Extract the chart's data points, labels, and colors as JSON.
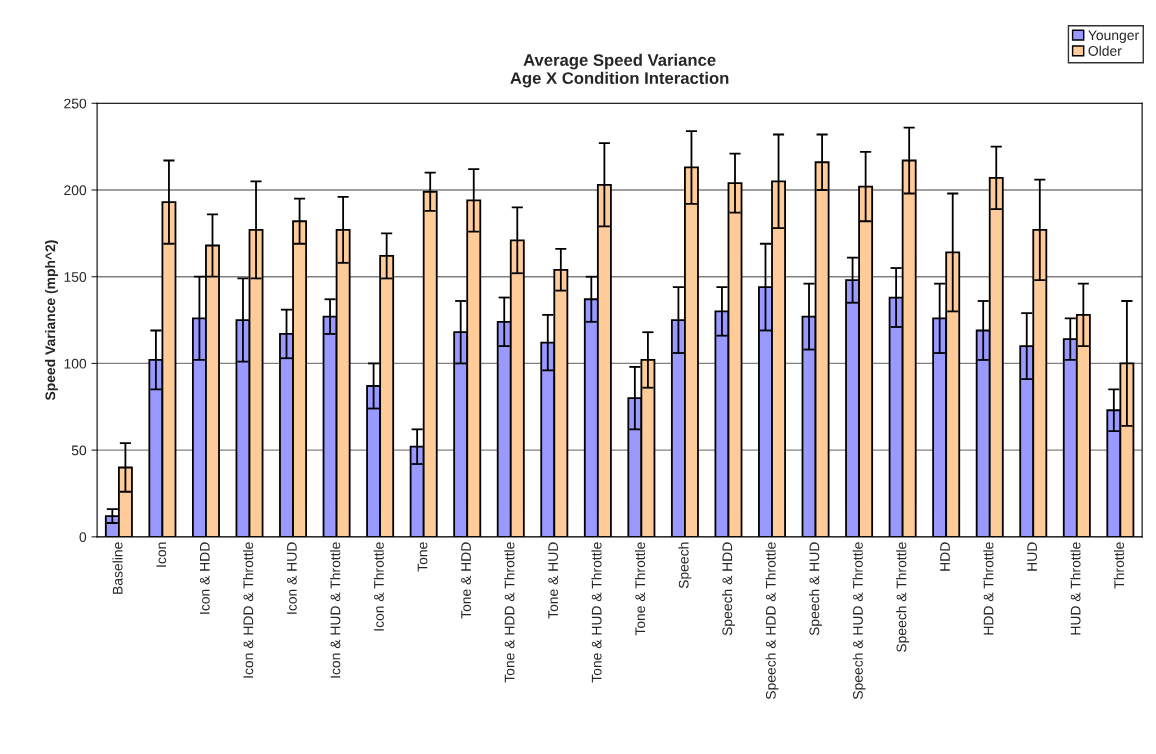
{
  "chart_data": {
    "type": "bar",
    "title": "Average Speed Variance\nAge X Condition Interaction",
    "ylabel": "Speed Variance (mph^2)",
    "categories": [
      "Baseline",
      "Icon",
      "Icon & HDD",
      "Icon & HDD & Throttle",
      "Icon & HUD",
      "Icon & HUD & Throttle",
      "Icon & Throttle",
      "Tone",
      "Tone & HDD",
      "Tone & HDD & Throttle",
      "Tone & HUD",
      "Tone & HUD & Throttle",
      "Tone & Throttle",
      "Speech",
      "Speech & HDD",
      "Speech & HDD & Throttle",
      "Speech & HUD",
      "Speech & HUD & Throttle",
      "Speech & Throttle",
      "HDD",
      "HDD & Throttle",
      "HUD",
      "HUD & Throttle",
      "Throttle"
    ],
    "series": [
      {
        "name": "Younger",
        "color": "#9999ff",
        "values": [
          12,
          102,
          126,
          125,
          117,
          127,
          87,
          52,
          118,
          124,
          112,
          137,
          80,
          125,
          130,
          144,
          127,
          148,
          138,
          126,
          119,
          110,
          114,
          73
        ],
        "errors": [
          4,
          17,
          24,
          24,
          14,
          10,
          13,
          10,
          18,
          14,
          16,
          13,
          18,
          19,
          14,
          25,
          19,
          13,
          17,
          20,
          17,
          19,
          12,
          12
        ]
      },
      {
        "name": "Older",
        "color": "#ffcc99",
        "values": [
          40,
          193,
          168,
          177,
          182,
          177,
          162,
          199,
          194,
          171,
          154,
          203,
          102,
          213,
          204,
          205,
          216,
          202,
          217,
          164,
          207,
          177,
          128,
          100
        ],
        "errors": [
          14,
          24,
          18,
          28,
          13,
          19,
          13,
          11,
          18,
          19,
          12,
          24,
          16,
          21,
          17,
          27,
          16,
          20,
          19,
          34,
          18,
          29,
          18,
          36
        ]
      }
    ],
    "ylim": [
      0,
      250
    ],
    "yticks": [
      0,
      50,
      100,
      150,
      200,
      250
    ],
    "grid": "y",
    "legend": "top right"
  }
}
